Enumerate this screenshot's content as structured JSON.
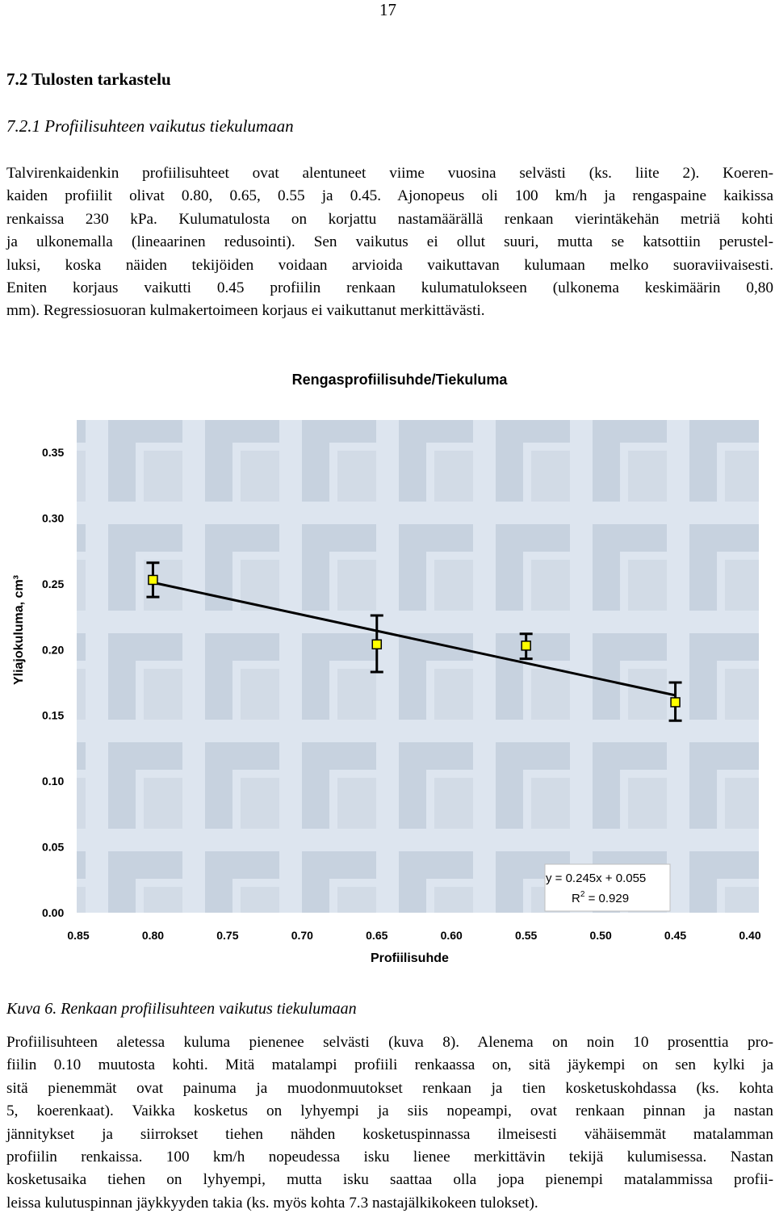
{
  "page_number": "17",
  "heading": "7.2  Tulosten tarkastelu",
  "subheading": "7.2.1  Profiilisuhteen vaikutus tiekulumaan",
  "intro_lines": [
    "Talvirenkaidenkin profiilisuhteet ovat alentuneet viime vuosina selvästi (ks. liite 2). Koeren-",
    "kaiden profiilit olivat 0.80, 0.65, 0.55 ja 0.45. Ajonopeus oli 100 km/h ja rengaspaine kaikissa",
    "renkaissa 230 kPa. Kulumatulosta on korjattu nastamäärällä renkaan vierintäkehän metriä kohti",
    "ja ulkonemalla (lineaarinen redusointi). Sen vaikutus ei ollut suuri, mutta se katsottiin perustel-",
    "luksi, koska näiden tekijöiden voidaan arvioida vaikuttavan kulumaan melko suoraviivaisesti.",
    "Eniten korjaus vaikutti 0.45 profiilin renkaan kulumatulokseen (ulkonema keskimäärin 0,80",
    "mm). Regressiosuoran kulmakertoimeen korjaus ei vaikuttanut merkittävästi."
  ],
  "chart_data": {
    "type": "scatter",
    "title": "Rengasprofiilisuhde/Tiekuluma",
    "xlabel": "Profiilisuhde",
    "ylabel": "Yliajokuluma, cm³",
    "x_reversed": true,
    "xlim": [
      0.4,
      0.85
    ],
    "ylim": [
      0.0,
      0.35
    ],
    "x_ticks": [
      "0.85",
      "0.80",
      "0.75",
      "0.70",
      "0.65",
      "0.60",
      "0.55",
      "0.50",
      "0.45",
      "0.40"
    ],
    "y_ticks": [
      "0.35",
      "0.30",
      "0.25",
      "0.20",
      "0.15",
      "0.10",
      "0.05",
      "0.00"
    ],
    "points": [
      {
        "x": 0.8,
        "y": 0.253,
        "err_high": 0.266,
        "err_low": 0.24
      },
      {
        "x": 0.65,
        "y": 0.204,
        "err_high": 0.226,
        "err_low": 0.183
      },
      {
        "x": 0.55,
        "y": 0.203,
        "err_high": 0.212,
        "err_low": 0.193
      },
      {
        "x": 0.45,
        "y": 0.16,
        "err_high": 0.175,
        "err_low": 0.146
      }
    ],
    "trendline": {
      "slope": 0.245,
      "intercept": 0.055,
      "x_from": 0.8,
      "x_to": 0.45
    },
    "equation": "y = 0.245x + 0.055",
    "r2_prefix": "R",
    "r2_sup": "2",
    "r2_value": " = 0.929",
    "marker_color": "#ffff00",
    "line_color": "#000000"
  },
  "caption": "Kuva 6. Renkaan profiilisuhteen vaikutus tiekulumaan",
  "outro_lines": [
    "Profiilisuhteen aletessa kuluma pienenee selvästi (kuva 8). Alenema on noin 10 prosenttia pro-",
    "fiilin 0.10 muutosta kohti. Mitä matalampi profiili renkaassa on, sitä jäykempi on sen kylki ja",
    "sitä pienemmät ovat painuma ja muodonmuutokset renkaan ja tien kosketuskohdassa (ks. kohta",
    "5, koerenkaat). Vaikka kosketus on lyhyempi ja siis nopeampi, ovat renkaan pinnan ja nastan",
    "jännitykset ja siirrokset tiehen nähden kosketuspinnassa ilmeisesti vähäisemmät matalamman",
    "profiilin renkaissa. 100 km/h nopeudessa isku lienee merkittävin tekijä kulumisessa. Nastan",
    "kosketusaika tiehen on lyhyempi, mutta isku saattaa olla jopa pienempi matalammissa profii-",
    "leissa kulutuspinnan jäykkyyden takia (ks. myös kohta 7.3 nastajälkikokeen tulokset)."
  ]
}
